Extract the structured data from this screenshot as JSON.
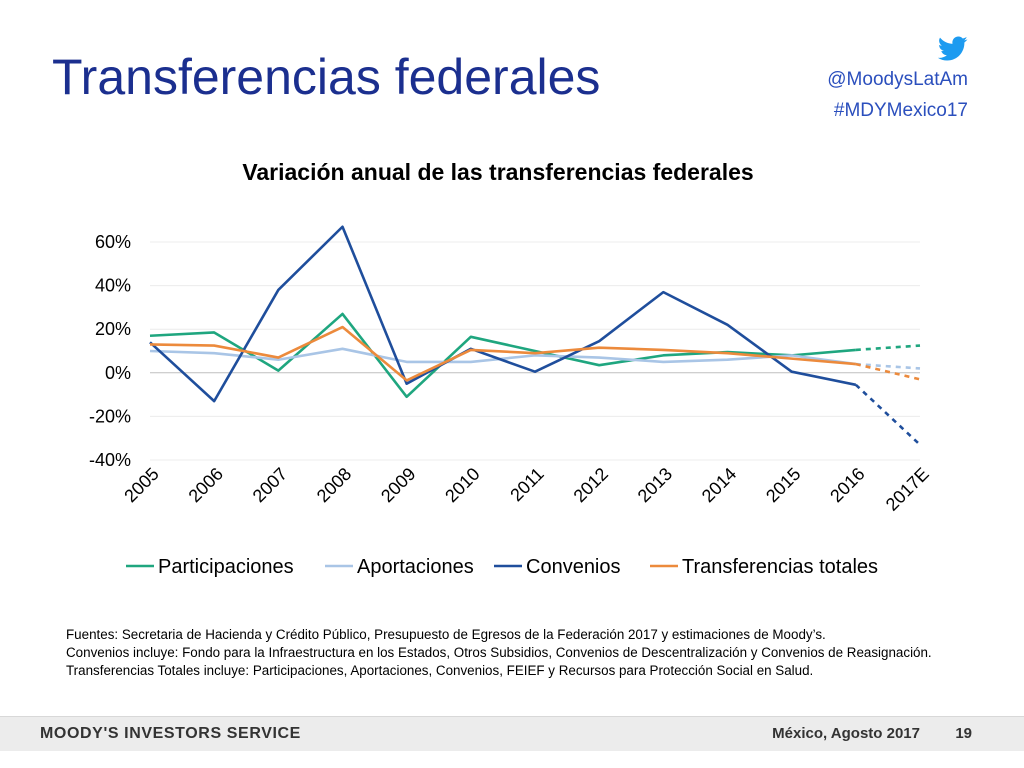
{
  "slide": {
    "title": "Transferencias federales",
    "social": {
      "icon": "twitter-icon",
      "handle": "@MoodysLatAm",
      "hashtag": "#MDYMexico17"
    }
  },
  "notes": [
    "Fuentes: Secretaria de Hacienda y Crédito Público, Presupuesto de Egresos de la Federación 2017 y estimaciones de Moody’s.",
    "Convenios incluye: Fondo para la Infraestructura en los Estados, Otros Subsidios, Convenios de Descentralización y Convenios de Reasignación.",
    "Transferencias Totales incluye: Participaciones, Aportaciones, Convenios, FEIEF y Recursos para Protección Social en Salud."
  ],
  "footer": {
    "brand": "MOODY'S INVESTORS SERVICE",
    "date": "México, Agosto 2017",
    "page": "19"
  },
  "chart_data": {
    "type": "line",
    "title": "Variación anual de las transferencias federales",
    "categories": [
      "2005",
      "2006",
      "2007",
      "2008",
      "2009",
      "2010",
      "2011",
      "2012",
      "2013",
      "2014",
      "2015",
      "2016",
      "2017E"
    ],
    "y_ticks": [
      "60%",
      "40%",
      "20%",
      "0%",
      "-20%",
      "-40%"
    ],
    "ylim": [
      -40,
      60
    ],
    "grid": true,
    "legend_position": "bottom",
    "estimated_from": "2016",
    "series": [
      {
        "name": "Participaciones",
        "color": "#1fa67f",
        "values": [
          17,
          18.5,
          1,
          27,
          -11,
          16.5,
          10,
          3.5,
          8,
          9.5,
          8,
          10.5,
          12.5
        ]
      },
      {
        "name": "Aportaciones",
        "color": "#a9c5e6",
        "values": [
          10,
          9,
          6,
          11,
          5,
          5,
          8,
          7,
          5,
          6,
          8,
          4,
          2
        ]
      },
      {
        "name": "Convenios",
        "color": "#1f4e9c",
        "values": [
          14,
          -13,
          38,
          67,
          -5,
          11,
          0.5,
          14.5,
          37,
          22,
          0.5,
          -5.5,
          -33
        ]
      },
      {
        "name": "Transferencias totales",
        "color": "#ec8a3c",
        "values": [
          13,
          12.5,
          7,
          21,
          -3.5,
          10.5,
          9,
          11.5,
          10.5,
          9,
          6.5,
          4,
          -3
        ]
      }
    ]
  }
}
